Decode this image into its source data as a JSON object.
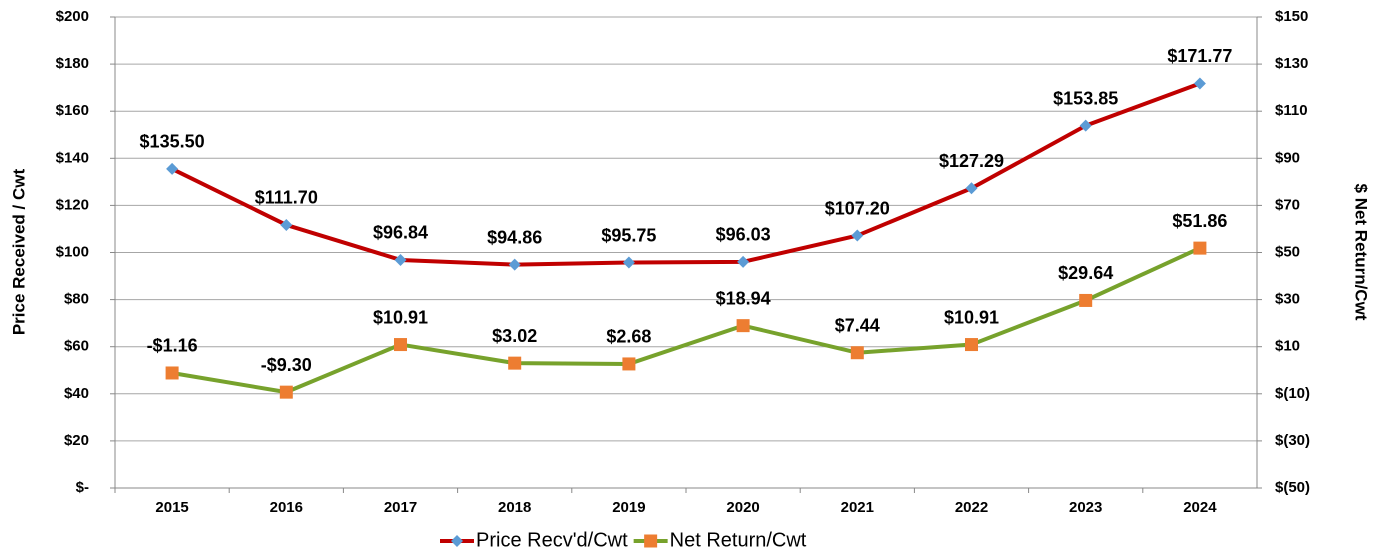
{
  "chart_data": {
    "type": "line",
    "categories": [
      "2015",
      "2016",
      "2017",
      "2018",
      "2019",
      "2020",
      "2021",
      "2022",
      "2023",
      "2024"
    ],
    "ylabel": "Price Received / Cwt",
    "y2label": "$ Net Return/Cwt",
    "ylim": [
      0,
      200
    ],
    "yticks": [
      {
        "value": 0,
        "label": "$-"
      },
      {
        "value": 20,
        "label": "$20"
      },
      {
        "value": 40,
        "label": "$40"
      },
      {
        "value": 60,
        "label": "$60"
      },
      {
        "value": 80,
        "label": "$80"
      },
      {
        "value": 100,
        "label": "$100"
      },
      {
        "value": 120,
        "label": "$120"
      },
      {
        "value": 140,
        "label": "$140"
      },
      {
        "value": 160,
        "label": "$160"
      },
      {
        "value": 180,
        "label": "$180"
      },
      {
        "value": 200,
        "label": "$200"
      }
    ],
    "y2lim": [
      -50,
      150
    ],
    "y2ticks": [
      {
        "value": -50,
        "label": "$(50)"
      },
      {
        "value": -30,
        "label": "$(30)"
      },
      {
        "value": -10,
        "label": "$(10)"
      },
      {
        "value": 10,
        "label": "$10"
      },
      {
        "value": 30,
        "label": "$30"
      },
      {
        "value": 50,
        "label": "$50"
      },
      {
        "value": 70,
        "label": "$70"
      },
      {
        "value": 90,
        "label": "$90"
      },
      {
        "value": 110,
        "label": "$110"
      },
      {
        "value": 130,
        "label": "$130"
      },
      {
        "value": 150,
        "label": "$150"
      }
    ],
    "grid": true,
    "legend": "bottom",
    "series": [
      {
        "name": "Price Recv'd/Cwt",
        "color": "#c00000",
        "marker": "diamond",
        "marker_color": "#5b9bd5",
        "values": [
          135.5,
          111.7,
          96.84,
          94.86,
          95.75,
          96.03,
          107.2,
          127.29,
          153.85,
          171.77
        ],
        "value_labels": [
          "$135.50",
          "$111.70",
          "$96.84",
          "$94.86",
          "$95.75",
          "$96.03",
          "$107.20",
          "$127.29",
          "$153.85",
          "$171.77"
        ]
      },
      {
        "name": "Net Return/Cwt",
        "color": "#77a22c",
        "marker": "square",
        "marker_color": "#ed7d31",
        "axis": "y2",
        "values": [
          -1.16,
          -9.3,
          10.91,
          3.02,
          2.68,
          18.94,
          7.44,
          10.91,
          29.64,
          51.86
        ],
        "value_labels": [
          "-$1.16",
          "-$9.30",
          "$10.91",
          "$3.02",
          "$2.68",
          "$18.94",
          "$7.44",
          "$10.91",
          "$29.64",
          "$51.86"
        ]
      }
    ]
  }
}
